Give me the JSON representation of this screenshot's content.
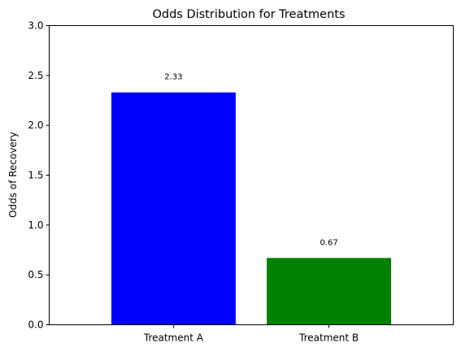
{
  "chart_data": {
    "type": "bar",
    "title": "Odds Distribution for Treatments",
    "xlabel": "",
    "ylabel": "Odds of Recovery",
    "categories": [
      "Treatment A",
      "Treatment B"
    ],
    "values": [
      2.33,
      0.67
    ],
    "data_labels": [
      "2.33",
      "0.67"
    ],
    "colors": [
      "#0000ff",
      "#008000"
    ],
    "ylim": [
      0,
      3.0
    ],
    "yticks": [
      0.0,
      0.5,
      1.0,
      1.5,
      2.0,
      2.5,
      3.0
    ],
    "ytick_labels": [
      "0.0",
      "0.5",
      "1.0",
      "1.5",
      "2.0",
      "2.5",
      "3.0"
    ],
    "grid": false,
    "legend": "none"
  }
}
